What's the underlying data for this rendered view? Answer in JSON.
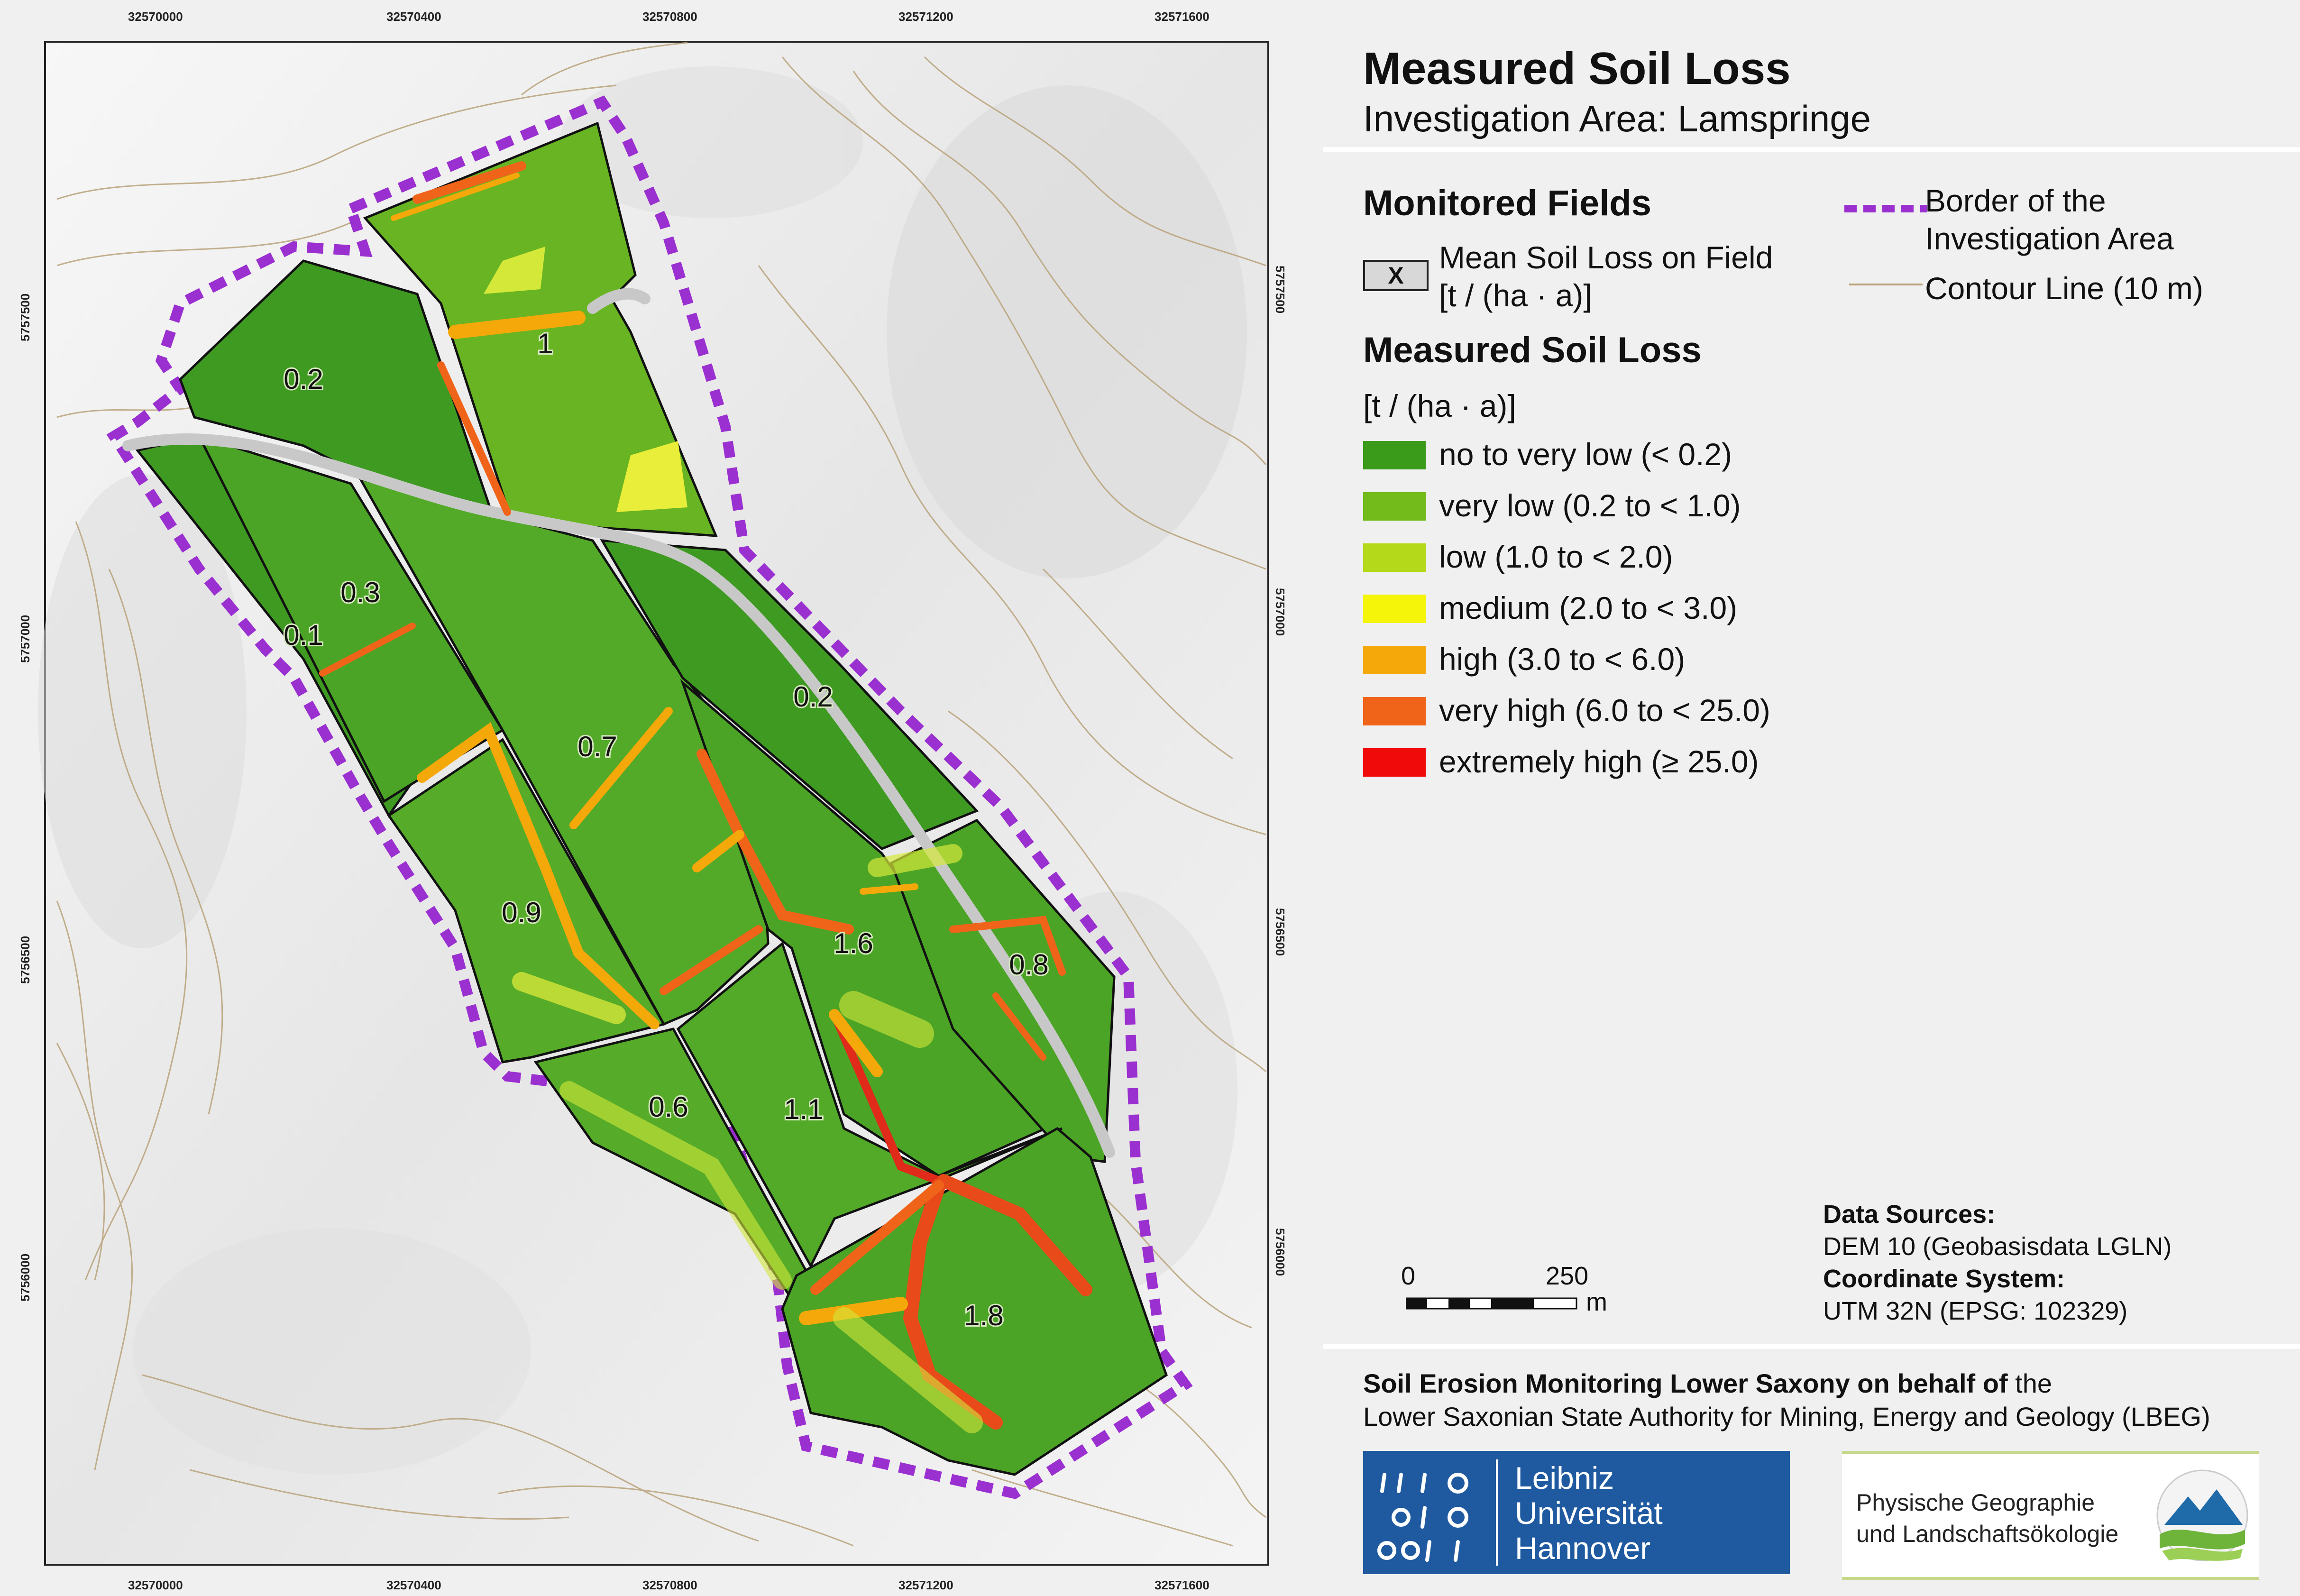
{
  "title": "Measured Soil Loss",
  "subtitle": "Investigation Area: Lamspringe",
  "legend": {
    "monitored_fields_heading": "Monitored Fields",
    "mean_soil_loss_symbol": "X",
    "mean_soil_loss_label_1": "Mean Soil Loss on Field",
    "mean_soil_loss_label_2": "[t / (ha · a)]",
    "border_label_1": "Border of the",
    "border_label_2": "Investigation Area",
    "border_color": "#9b30d0",
    "contour_label": "Contour Line (10 m)",
    "contour_color": "#b9a27a",
    "measured_heading": "Measured Soil Loss",
    "unit": "[t / (ha · a)]",
    "classes": [
      {
        "label": "no to very low (< 0.2)",
        "color": "#3a9a1a"
      },
      {
        "label": "very low (0.2 to < 1.0)",
        "color": "#72bb1a"
      },
      {
        "label": "low (1.0 to < 2.0)",
        "color": "#b4d91a"
      },
      {
        "label": "medium (2.0 to < 3.0)",
        "color": "#f5f50a"
      },
      {
        "label": "high (3.0 to < 6.0)",
        "color": "#f5a80a"
      },
      {
        "label": "very high (6.0 to < 25.0)",
        "color": "#f0641a"
      },
      {
        "label": "extremely high (≥ 25.0)",
        "color": "#f00a0a"
      }
    ]
  },
  "scale_bar": {
    "start": "0",
    "end": "250",
    "unit": "m"
  },
  "data_sources": {
    "heading": "Data Sources:",
    "value": "DEM 10 (Geobasisdata LGLN)",
    "crs_heading": "Coordinate System:",
    "crs_value": "UTM 32N (EPSG: 102329)"
  },
  "footer": {
    "line1_bold": "Soil Erosion Monitoring Lower Saxony on behalf of",
    "line1_rest": " the",
    "line2": "Lower Saxonian State Authority for Mining, Energy and Geology (LBEG)",
    "luh_line1": "Leibniz",
    "luh_line2": "Universität",
    "luh_line3": "Hannover",
    "luh_color": "#1f5aa0",
    "phys_line1": "Physische Geographie",
    "phys_line2": "und Landschaftsökologie"
  },
  "axes": {
    "x_ticks": [
      "32570000",
      "32570400",
      "32570800",
      "32571200",
      "32571600"
    ],
    "y_ticks": [
      "5757500",
      "5757000",
      "5756500",
      "5756000"
    ]
  },
  "fields": [
    {
      "value": "0.2",
      "id": "field-0.2-nw"
    },
    {
      "value": "1",
      "id": "field-1"
    },
    {
      "value": "0.3",
      "id": "field-0.3"
    },
    {
      "value": "0.1",
      "id": "field-0.1"
    },
    {
      "value": "0.7",
      "id": "field-0.7"
    },
    {
      "value": "0.2",
      "id": "field-0.2-e"
    },
    {
      "value": "0.9",
      "id": "field-0.9"
    },
    {
      "value": "1.6",
      "id": "field-1.6"
    },
    {
      "value": "0.8",
      "id": "field-0.8"
    },
    {
      "value": "0.6",
      "id": "field-0.6"
    },
    {
      "value": "1.1",
      "id": "field-1.1"
    },
    {
      "value": "1.8",
      "id": "field-1.8"
    }
  ]
}
